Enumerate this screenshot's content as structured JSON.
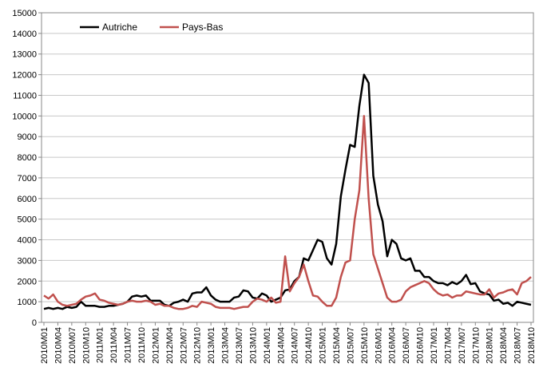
{
  "chart_data": {
    "type": "line",
    "categories": [
      "2010M01",
      null,
      null,
      "2010M04",
      null,
      null,
      "2010M07",
      null,
      null,
      "2010M10",
      null,
      null,
      "2011M01",
      null,
      null,
      "2011M04",
      null,
      null,
      "2011M07",
      null,
      null,
      "2011M10",
      null,
      null,
      "2012M01",
      null,
      null,
      "2012M04",
      null,
      null,
      "2012M07",
      null,
      null,
      "2012M10",
      null,
      null,
      "2013M01",
      null,
      null,
      "2013M04",
      null,
      null,
      "2013M07",
      null,
      null,
      "2013M10",
      null,
      null,
      "2014M01",
      null,
      null,
      "2014M04",
      null,
      null,
      "2014M07",
      null,
      null,
      "2014M10",
      null,
      null,
      "2015M01",
      null,
      null,
      "2015M04",
      null,
      null,
      "2015M07",
      null,
      null,
      "2015M10",
      null,
      null,
      "2016M01",
      null,
      null,
      "2016M04",
      null,
      null,
      "2016M07",
      null,
      null,
      "2016M10",
      null,
      null,
      "2017M01",
      null,
      null,
      "2017M04",
      null,
      null,
      "2017M07",
      null,
      null,
      "2017M10",
      null,
      null,
      "2018M01",
      null,
      null,
      "2018M04",
      null,
      null,
      "2018M07",
      null,
      null,
      "2018M10"
    ],
    "series": [
      {
        "name": "Autriche",
        "color": "#000000",
        "values": [
          650,
          700,
          650,
          700,
          650,
          750,
          700,
          750,
          1000,
          800,
          800,
          800,
          750,
          750,
          800,
          800,
          850,
          900,
          1000,
          1250,
          1300,
          1250,
          1300,
          1050,
          1050,
          1050,
          850,
          800,
          950,
          1000,
          1100,
          1000,
          1400,
          1450,
          1450,
          1700,
          1300,
          1100,
          1000,
          1000,
          1000,
          1200,
          1250,
          1550,
          1500,
          1200,
          1150,
          1400,
          1300,
          1000,
          1100,
          1200,
          1550,
          1600,
          2000,
          2200,
          3100,
          3000,
          3500,
          4000,
          3900,
          3100,
          2800,
          3800,
          6100,
          7400,
          8600,
          8500,
          10500,
          12000,
          11600,
          7100,
          5700,
          4900,
          3200,
          4000,
          3800,
          3100,
          3000,
          3100,
          2500,
          2500,
          2200,
          2200,
          2000,
          1900,
          1900,
          1800,
          1950,
          1850,
          2000,
          2300,
          1850,
          1900,
          1500,
          1400,
          1350,
          1050,
          1100,
          900,
          950,
          800,
          1000,
          950,
          900,
          850
        ]
      },
      {
        "name": "Pays-Bas",
        "color": "#c0504d",
        "values": [
          1300,
          1150,
          1350,
          1000,
          850,
          800,
          850,
          900,
          1100,
          1250,
          1300,
          1400,
          1100,
          1050,
          950,
          900,
          850,
          900,
          1000,
          1050,
          1000,
          1000,
          1050,
          1000,
          850,
          900,
          800,
          800,
          700,
          650,
          650,
          700,
          800,
          750,
          1000,
          950,
          900,
          750,
          700,
          700,
          700,
          650,
          700,
          750,
          750,
          1000,
          1150,
          1100,
          1000,
          1200,
          950,
          1000,
          3200,
          1500,
          1900,
          2200,
          2800,
          2000,
          1300,
          1250,
          1000,
          800,
          800,
          1200,
          2200,
          2900,
          3000,
          5000,
          6400,
          10000,
          6000,
          3300,
          2600,
          1900,
          1200,
          1000,
          1000,
          1100,
          1500,
          1700,
          1800,
          1900,
          2000,
          1900,
          1600,
          1400,
          1300,
          1350,
          1200,
          1300,
          1300,
          1500,
          1450,
          1400,
          1350,
          1350,
          1600,
          1200,
          1400,
          1450,
          1550,
          1600,
          1350,
          1900,
          2000,
          2200
        ]
      }
    ],
    "ylim": [
      0,
      15000
    ],
    "yticks": [
      0,
      1000,
      2000,
      3000,
      4000,
      5000,
      6000,
      7000,
      8000,
      9000,
      10000,
      11000,
      12000,
      13000,
      14000,
      15000
    ],
    "grid": true,
    "legend": "upper left"
  }
}
